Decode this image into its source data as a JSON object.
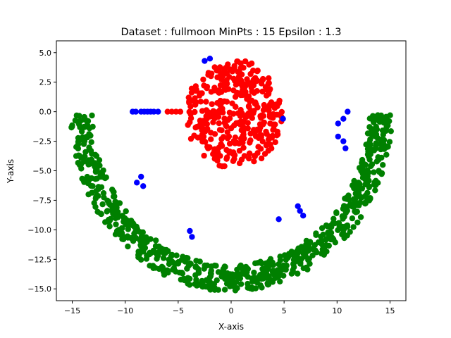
{
  "chart_data": {
    "type": "scatter",
    "title": "Dataset : fullmoon MinPts : 15 Epsilon : 1.3",
    "xlabel": "X-axis",
    "ylabel": "Y-axis",
    "xlim": [
      -16.5,
      16.5
    ],
    "ylim": [
      -16.0,
      6.0
    ],
    "xticks": [
      -15,
      -10,
      -5,
      0,
      5,
      10,
      15
    ],
    "xtick_labels": [
      "−15",
      "−10",
      "−5",
      "0",
      "5",
      "10",
      "15"
    ],
    "yticks": [
      5.0,
      2.5,
      0.0,
      -2.5,
      -5.0,
      -7.5,
      -10.0,
      -12.5,
      -15.0
    ],
    "ytick_labels": [
      "5.0",
      "2.5",
      "0.0",
      "−2.5",
      "−5.0",
      "−7.5",
      "−10.0",
      "−12.5",
      "−15.0"
    ],
    "grid": false,
    "legend": "none",
    "series_colors": {
      "moon_cluster": "#008000",
      "disc_cluster": "#ff0000",
      "noise": "#0000ff"
    },
    "generated_clusters": [
      {
        "shape": "arc",
        "color": "#008000",
        "count": 720,
        "center": [
          0,
          0
        ],
        "radius_min": 13.0,
        "radius_max": 15.2,
        "angle_start_deg": 181,
        "angle_end_deg": 359
      },
      {
        "shape": "disc",
        "color": "#ff0000",
        "count": 380,
        "center": [
          0.3,
          -0.2
        ],
        "radius": 4.6
      }
    ],
    "points": [
      {
        "series": "disc_cluster",
        "x": -6.0,
        "y": 0.0
      },
      {
        "series": "disc_cluster",
        "x": -5.6,
        "y": 0.0
      },
      {
        "series": "disc_cluster",
        "x": -5.2,
        "y": 0.0
      },
      {
        "series": "disc_cluster",
        "x": -4.8,
        "y": 0.0
      },
      {
        "series": "noise",
        "x": -9.3,
        "y": 0.0
      },
      {
        "series": "noise",
        "x": -9.0,
        "y": 0.0
      },
      {
        "series": "noise",
        "x": -8.5,
        "y": 0.0
      },
      {
        "series": "noise",
        "x": -8.2,
        "y": 0.0
      },
      {
        "series": "noise",
        "x": -7.9,
        "y": 0.0
      },
      {
        "series": "noise",
        "x": -7.6,
        "y": 0.0
      },
      {
        "series": "noise",
        "x": -7.3,
        "y": 0.0
      },
      {
        "series": "noise",
        "x": -6.9,
        "y": 0.0
      },
      {
        "series": "noise",
        "x": -2.5,
        "y": 4.3
      },
      {
        "series": "noise",
        "x": -2.0,
        "y": 4.5
      },
      {
        "series": "noise",
        "x": 4.9,
        "y": -0.6
      },
      {
        "series": "noise",
        "x": -8.5,
        "y": -5.5
      },
      {
        "series": "noise",
        "x": -8.9,
        "y": -6.0
      },
      {
        "series": "noise",
        "x": -8.3,
        "y": -6.3
      },
      {
        "series": "noise",
        "x": -3.9,
        "y": -10.1
      },
      {
        "series": "noise",
        "x": -3.7,
        "y": -10.6
      },
      {
        "series": "noise",
        "x": 4.5,
        "y": -9.1
      },
      {
        "series": "noise",
        "x": 6.3,
        "y": -8.0
      },
      {
        "series": "noise",
        "x": 6.5,
        "y": -8.4
      },
      {
        "series": "noise",
        "x": 6.8,
        "y": -8.8
      },
      {
        "series": "noise",
        "x": 10.1,
        "y": -1.0
      },
      {
        "series": "noise",
        "x": 10.6,
        "y": -0.6
      },
      {
        "series": "noise",
        "x": 11.0,
        "y": 0.0
      },
      {
        "series": "noise",
        "x": 10.1,
        "y": -2.1
      },
      {
        "series": "noise",
        "x": 10.6,
        "y": -2.5
      },
      {
        "series": "noise",
        "x": 10.8,
        "y": -3.1
      }
    ]
  }
}
